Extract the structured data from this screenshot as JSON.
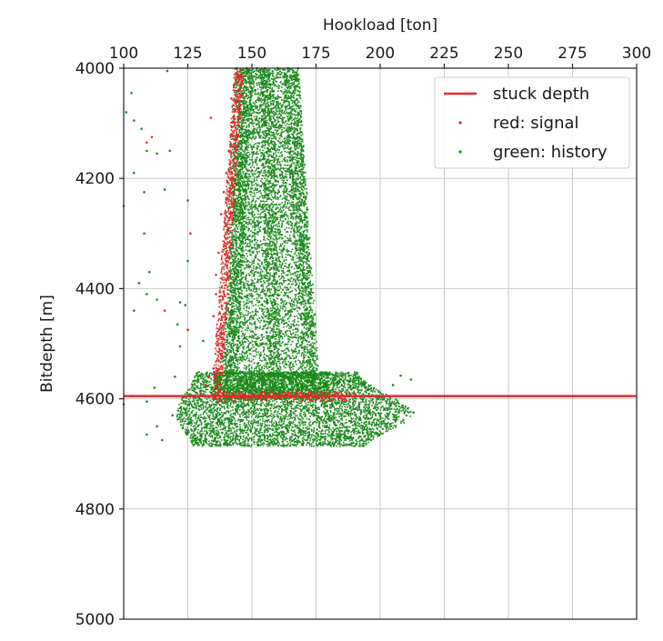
{
  "chart_data": {
    "type": "scatter",
    "xlabel": "Hookload [ton]",
    "ylabel": "Bitdepth [m]",
    "xlim": [
      100,
      300
    ],
    "ylim": [
      5000,
      4000
    ],
    "y_inverted": true,
    "x_axis_position": "top",
    "xticks": [
      100,
      125,
      150,
      175,
      200,
      225,
      250,
      275,
      300
    ],
    "xtick_labels": [
      "100",
      "125",
      "150",
      "175",
      "200",
      "225",
      "250",
      "275",
      "300"
    ],
    "yticks": [
      4000,
      4200,
      4400,
      4600,
      4800,
      5000
    ],
    "ytick_labels": [
      "4000",
      "4200",
      "4400",
      "4600",
      "4800",
      "5000"
    ],
    "grid": true,
    "legend_position": "top-right",
    "legend": [
      "stuck depth",
      "red: signal",
      "green: history"
    ],
    "stuck_depth": 4595,
    "colors": {
      "stuck": "#e8262a",
      "signal": "#e8262a",
      "history": "#1a8a1a",
      "grid": "#c8c8c8",
      "axis": "#222222"
    },
    "series": [
      {
        "name": "green: history",
        "kind": "scatter",
        "points": [
          [
            144,
            4000
          ],
          [
            148,
            4000
          ],
          [
            152,
            4000
          ],
          [
            155,
            4000
          ],
          [
            160,
            4000
          ],
          [
            164,
            4000
          ],
          [
            168,
            4000
          ],
          [
            117,
            4005
          ],
          [
            103,
            4045
          ],
          [
            101,
            4080
          ],
          [
            104,
            4095
          ],
          [
            107,
            4110
          ],
          [
            109,
            4150
          ],
          [
            113,
            4155
          ],
          [
            118,
            4150
          ],
          [
            104,
            4190
          ],
          [
            116,
            4220
          ],
          [
            108,
            4225
          ],
          [
            100,
            4250
          ],
          [
            125,
            4240
          ],
          [
            108,
            4300
          ],
          [
            126,
            4300
          ],
          [
            125,
            4350
          ],
          [
            110,
            4370
          ],
          [
            106,
            4390
          ],
          [
            109,
            4410
          ],
          [
            122,
            4425
          ],
          [
            104,
            4440
          ],
          [
            113,
            4420
          ],
          [
            124,
            4430
          ],
          [
            121,
            4465
          ],
          [
            125,
            4475
          ],
          [
            131,
            4495
          ],
          [
            122,
            4505
          ],
          [
            120,
            4560
          ],
          [
            112,
            4580
          ],
          [
            108,
            4595
          ],
          [
            103,
            4595
          ],
          [
            109,
            4605
          ],
          [
            100,
            4610
          ],
          [
            119,
            4630
          ],
          [
            125,
            4645
          ],
          [
            113,
            4650
          ],
          [
            109,
            4665
          ],
          [
            115,
            4675
          ],
          [
            208,
            4558
          ],
          [
            212,
            4565
          ],
          [
            205,
            4575
          ],
          [
            203,
            4620
          ],
          [
            213,
            4625
          ],
          [
            206,
            4640
          ]
        ]
      },
      {
        "name": "red: signal",
        "kind": "scatter",
        "points": [
          [
            144,
            4010
          ],
          [
            143,
            4030
          ],
          [
            142,
            4055
          ],
          [
            145,
            4080
          ],
          [
            134,
            4090
          ],
          [
            142,
            4120
          ],
          [
            141,
            4150
          ],
          [
            140,
            4190
          ],
          [
            139,
            4225
          ],
          [
            138,
            4265
          ],
          [
            141,
            4290
          ],
          [
            137,
            4335
          ],
          [
            136,
            4375
          ],
          [
            136,
            4410
          ],
          [
            135,
            4450
          ],
          [
            138,
            4480
          ],
          [
            137,
            4515
          ],
          [
            135,
            4545
          ],
          [
            133,
            4560
          ],
          [
            132,
            4575
          ],
          [
            130,
            4590
          ],
          [
            137,
            4605
          ],
          [
            109,
            4135
          ],
          [
            111,
            4125
          ],
          [
            126,
            4300
          ],
          [
            116,
            4440
          ],
          [
            125,
            4475
          ],
          [
            145,
            4590
          ],
          [
            150,
            4592
          ],
          [
            155,
            4588
          ],
          [
            160,
            4595
          ],
          [
            165,
            4590
          ],
          [
            170,
            4592
          ],
          [
            175,
            4595
          ],
          [
            180,
            4590
          ],
          [
            185,
            4600
          ]
        ]
      }
    ]
  }
}
